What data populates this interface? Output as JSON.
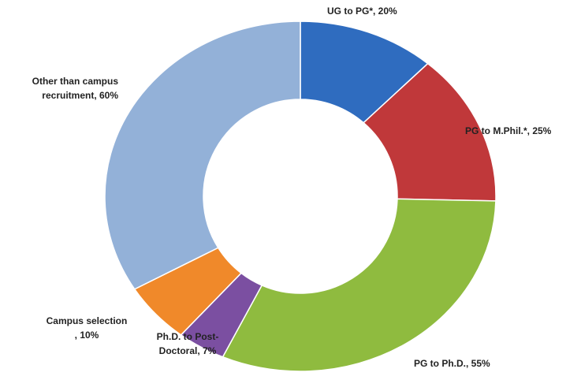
{
  "chart_data": {
    "type": "donut",
    "values": [
      20,
      25,
      55,
      7,
      10,
      60
    ],
    "value_labels": [
      [
        "UG to PG*, 20%"
      ],
      [
        "PG to M.Phil.*, 25%"
      ],
      [
        "PG to Ph.D., 55%"
      ],
      [
        "Ph.D. to Post-",
        "Doctoral, 7%"
      ],
      [
        "Campus selection",
        ", 10%"
      ],
      [
        "Other than campus",
        "recruitment, 60%"
      ]
    ],
    "colors": [
      "#2f6cbf",
      "#c0383a",
      "#8fbb3f",
      "#7b4fa1",
      "#f0892a",
      "#93b1d8"
    ]
  }
}
